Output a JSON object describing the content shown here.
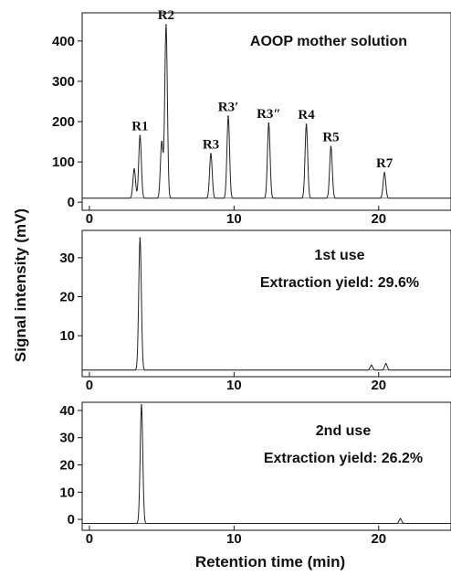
{
  "chart_data": [
    {
      "type": "line",
      "title": "AOOP mother solution",
      "xlabel": "Retention time (min)",
      "ylabel": "Signal intensity (mV)",
      "xlim": [
        -0.5,
        25
      ],
      "ylim": [
        -20,
        470
      ],
      "x_ticks": [
        0,
        10,
        20
      ],
      "y_ticks": [
        0,
        100,
        200,
        300,
        400
      ],
      "baseline": 10,
      "grid": false,
      "peaks": [
        {
          "x": 3.1,
          "y": 82,
          "label": ""
        },
        {
          "x": 3.5,
          "y": 165,
          "label": "R1"
        },
        {
          "x": 5.0,
          "y": 150,
          "label": ""
        },
        {
          "x": 5.3,
          "y": 440,
          "label": "R2"
        },
        {
          "x": 8.4,
          "y": 120,
          "label": "R3"
        },
        {
          "x": 9.6,
          "y": 213,
          "label": "R3′"
        },
        {
          "x": 12.4,
          "y": 196,
          "label": "R3″"
        },
        {
          "x": 15.0,
          "y": 193,
          "label": "R4"
        },
        {
          "x": 16.7,
          "y": 138,
          "label": "R5"
        },
        {
          "x": 20.4,
          "y": 73,
          "label": "R7"
        }
      ]
    },
    {
      "type": "line",
      "annotation": [
        "1st use",
        "Extraction yield: 29.6%"
      ],
      "xlim": [
        -0.5,
        25
      ],
      "ylim": [
        -0.5,
        37
      ],
      "x_ticks": [
        0,
        10,
        20
      ],
      "y_ticks": [
        10,
        20,
        30
      ],
      "baseline": 1.2,
      "grid": false,
      "peaks": [
        {
          "x": 3.5,
          "y": 35,
          "label": ""
        },
        {
          "x": 19.5,
          "y": 2.4,
          "label": ""
        },
        {
          "x": 20.5,
          "y": 2.8,
          "label": ""
        }
      ]
    },
    {
      "type": "line",
      "annotation": [
        "2nd use",
        "Extraction yield: 26.2%"
      ],
      "xlim": [
        -0.5,
        25
      ],
      "ylim": [
        -4,
        43
      ],
      "x_ticks": [
        0,
        10,
        20
      ],
      "y_ticks": [
        0,
        10,
        20,
        30,
        40
      ],
      "baseline": -1.5,
      "grid": false,
      "peaks": [
        {
          "x": 3.6,
          "y": 42,
          "label": ""
        },
        {
          "x": 21.5,
          "y": 0.2,
          "label": ""
        }
      ]
    }
  ]
}
